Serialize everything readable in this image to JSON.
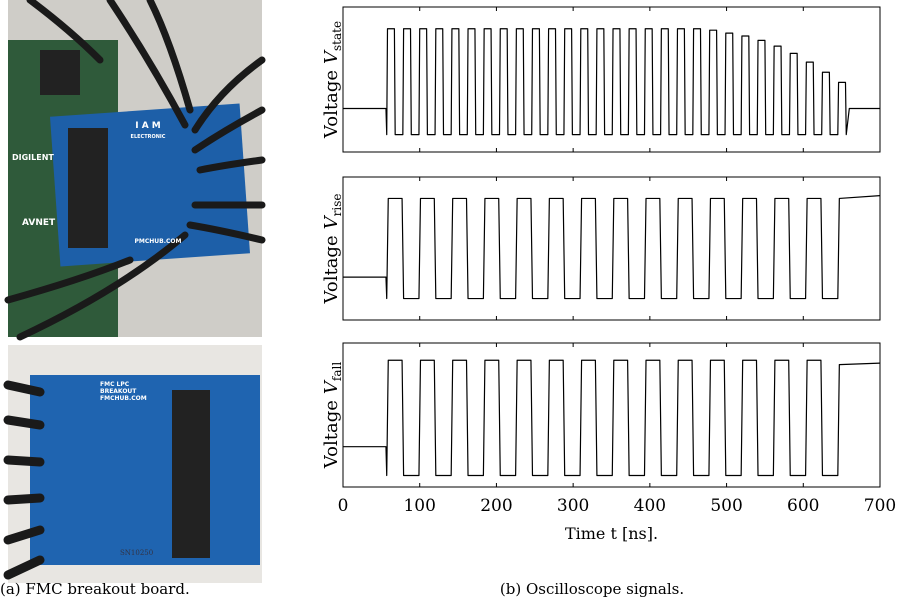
{
  "figure": {
    "panel_a": {
      "caption": "(a) FMC breakout board.",
      "photo_top_texts": [
        "I A M",
        "ELECTRONIC",
        "PMCHUB.COM",
        "DIGILENT",
        "AVNET"
      ],
      "photo_bottom_texts": [
        "FMC LPC",
        "BREAKOUT",
        "FMCHUB.COM",
        "SN10250"
      ]
    },
    "panel_b": {
      "caption": "(b) Oscilloscope signals."
    }
  },
  "chart_data": [
    {
      "type": "line",
      "ylabel": {
        "text": "Voltage",
        "symbol": "V",
        "subscript": "state"
      },
      "x": [
        0,
        56,
        57,
        58,
        67,
        68,
        78,
        79,
        88,
        89,
        99,
        100,
        109,
        110,
        120,
        121,
        130,
        131,
        141,
        142,
        151,
        152,
        162,
        163,
        172,
        173,
        183,
        184,
        193,
        194,
        204,
        205,
        214,
        215,
        225,
        226,
        235,
        236,
        246,
        247,
        256,
        257,
        267,
        268,
        277,
        278,
        288,
        289,
        298,
        299,
        309,
        310,
        319,
        320,
        330,
        331,
        340,
        341,
        351,
        352,
        361,
        362,
        372,
        373,
        382,
        383,
        393,
        394,
        403,
        404,
        414,
        415,
        424,
        425,
        435,
        436,
        445,
        446,
        456,
        457,
        466,
        467,
        477,
        478,
        487,
        488,
        498,
        499,
        508,
        509,
        519,
        520,
        529,
        530,
        540,
        541,
        550,
        551,
        561,
        562,
        571,
        572,
        582,
        583,
        592,
        593,
        603,
        604,
        613,
        614,
        624,
        625,
        634,
        635,
        645,
        646,
        655,
        656,
        660,
        700
      ],
      "series": [
        {
          "color": "#000000",
          "values": [
            0.3,
            0.3,
            0.12,
            0.85,
            0.85,
            0.12,
            0.12,
            0.85,
            0.85,
            0.12,
            0.12,
            0.85,
            0.85,
            0.12,
            0.12,
            0.85,
            0.85,
            0.12,
            0.12,
            0.85,
            0.85,
            0.12,
            0.12,
            0.85,
            0.85,
            0.12,
            0.12,
            0.85,
            0.85,
            0.12,
            0.12,
            0.85,
            0.85,
            0.12,
            0.12,
            0.85,
            0.85,
            0.12,
            0.12,
            0.85,
            0.85,
            0.12,
            0.12,
            0.85,
            0.85,
            0.12,
            0.12,
            0.85,
            0.85,
            0.12,
            0.12,
            0.85,
            0.85,
            0.12,
            0.12,
            0.85,
            0.85,
            0.12,
            0.12,
            0.85,
            0.85,
            0.12,
            0.12,
            0.85,
            0.85,
            0.12,
            0.12,
            0.85,
            0.85,
            0.12,
            0.12,
            0.85,
            0.85,
            0.12,
            0.12,
            0.85,
            0.85,
            0.12,
            0.12,
            0.85,
            0.85,
            0.12,
            0.12,
            0.84,
            0.84,
            0.12,
            0.12,
            0.82,
            0.82,
            0.12,
            0.12,
            0.8,
            0.8,
            0.12,
            0.12,
            0.77,
            0.77,
            0.12,
            0.12,
            0.73,
            0.73,
            0.12,
            0.12,
            0.68,
            0.68,
            0.12,
            0.12,
            0.62,
            0.62,
            0.12,
            0.12,
            0.55,
            0.55,
            0.12,
            0.12,
            0.48,
            0.48,
            0.12,
            0.3,
            0.3
          ]
        }
      ],
      "xlim": [
        0,
        700
      ],
      "ylim": [
        0,
        1
      ]
    },
    {
      "type": "line",
      "ylabel": {
        "text": "Voltage",
        "symbol": "V",
        "subscript": "rise"
      },
      "x": [
        0,
        56,
        57,
        59,
        77,
        79,
        99,
        101,
        119,
        121,
        141,
        143,
        161,
        163,
        183,
        185,
        203,
        205,
        225,
        227,
        245,
        247,
        267,
        269,
        287,
        289,
        309,
        311,
        329,
        331,
        351,
        353,
        371,
        373,
        393,
        395,
        413,
        415,
        435,
        437,
        455,
        457,
        477,
        479,
        497,
        499,
        519,
        521,
        539,
        541,
        561,
        563,
        581,
        583,
        603,
        605,
        623,
        625,
        645,
        647,
        700
      ],
      "series": [
        {
          "color": "#000000",
          "values": [
            0.3,
            0.3,
            0.15,
            0.85,
            0.85,
            0.15,
            0.15,
            0.85,
            0.85,
            0.15,
            0.15,
            0.85,
            0.85,
            0.15,
            0.15,
            0.85,
            0.85,
            0.15,
            0.15,
            0.85,
            0.85,
            0.15,
            0.15,
            0.85,
            0.85,
            0.15,
            0.15,
            0.85,
            0.85,
            0.15,
            0.15,
            0.85,
            0.85,
            0.15,
            0.15,
            0.85,
            0.85,
            0.15,
            0.15,
            0.85,
            0.85,
            0.15,
            0.15,
            0.85,
            0.85,
            0.15,
            0.15,
            0.85,
            0.85,
            0.15,
            0.15,
            0.85,
            0.85,
            0.15,
            0.15,
            0.85,
            0.85,
            0.15,
            0.15,
            0.85,
            0.87
          ]
        }
      ],
      "xlim": [
        0,
        700
      ],
      "ylim": [
        0,
        1
      ]
    },
    {
      "type": "line",
      "ylabel": {
        "text": "Voltage",
        "symbol": "V",
        "subscript": "fall"
      },
      "x": [
        0,
        56,
        57,
        59,
        77,
        79,
        99,
        101,
        119,
        121,
        141,
        143,
        161,
        163,
        183,
        185,
        203,
        205,
        225,
        227,
        245,
        247,
        267,
        269,
        287,
        289,
        309,
        311,
        329,
        331,
        351,
        353,
        371,
        373,
        393,
        395,
        413,
        415,
        435,
        437,
        455,
        457,
        477,
        479,
        497,
        499,
        519,
        521,
        539,
        541,
        561,
        563,
        581,
        583,
        603,
        605,
        623,
        625,
        645,
        647,
        700
      ],
      "series": [
        {
          "color": "#000000",
          "values": [
            0.28,
            0.28,
            0.08,
            0.88,
            0.88,
            0.08,
            0.08,
            0.88,
            0.88,
            0.08,
            0.08,
            0.88,
            0.88,
            0.08,
            0.08,
            0.88,
            0.88,
            0.08,
            0.08,
            0.88,
            0.88,
            0.08,
            0.08,
            0.88,
            0.88,
            0.08,
            0.08,
            0.88,
            0.88,
            0.08,
            0.08,
            0.88,
            0.88,
            0.08,
            0.08,
            0.88,
            0.88,
            0.08,
            0.08,
            0.88,
            0.88,
            0.08,
            0.08,
            0.88,
            0.88,
            0.08,
            0.08,
            0.88,
            0.88,
            0.08,
            0.08,
            0.88,
            0.88,
            0.08,
            0.08,
            0.88,
            0.88,
            0.08,
            0.08,
            0.85,
            0.86
          ]
        }
      ],
      "xlim": [
        0,
        700
      ],
      "ylim": [
        0,
        1
      ],
      "xticks": [
        0,
        100,
        200,
        300,
        400,
        500,
        600,
        700
      ],
      "xlabel": "Time t [ns]."
    }
  ]
}
